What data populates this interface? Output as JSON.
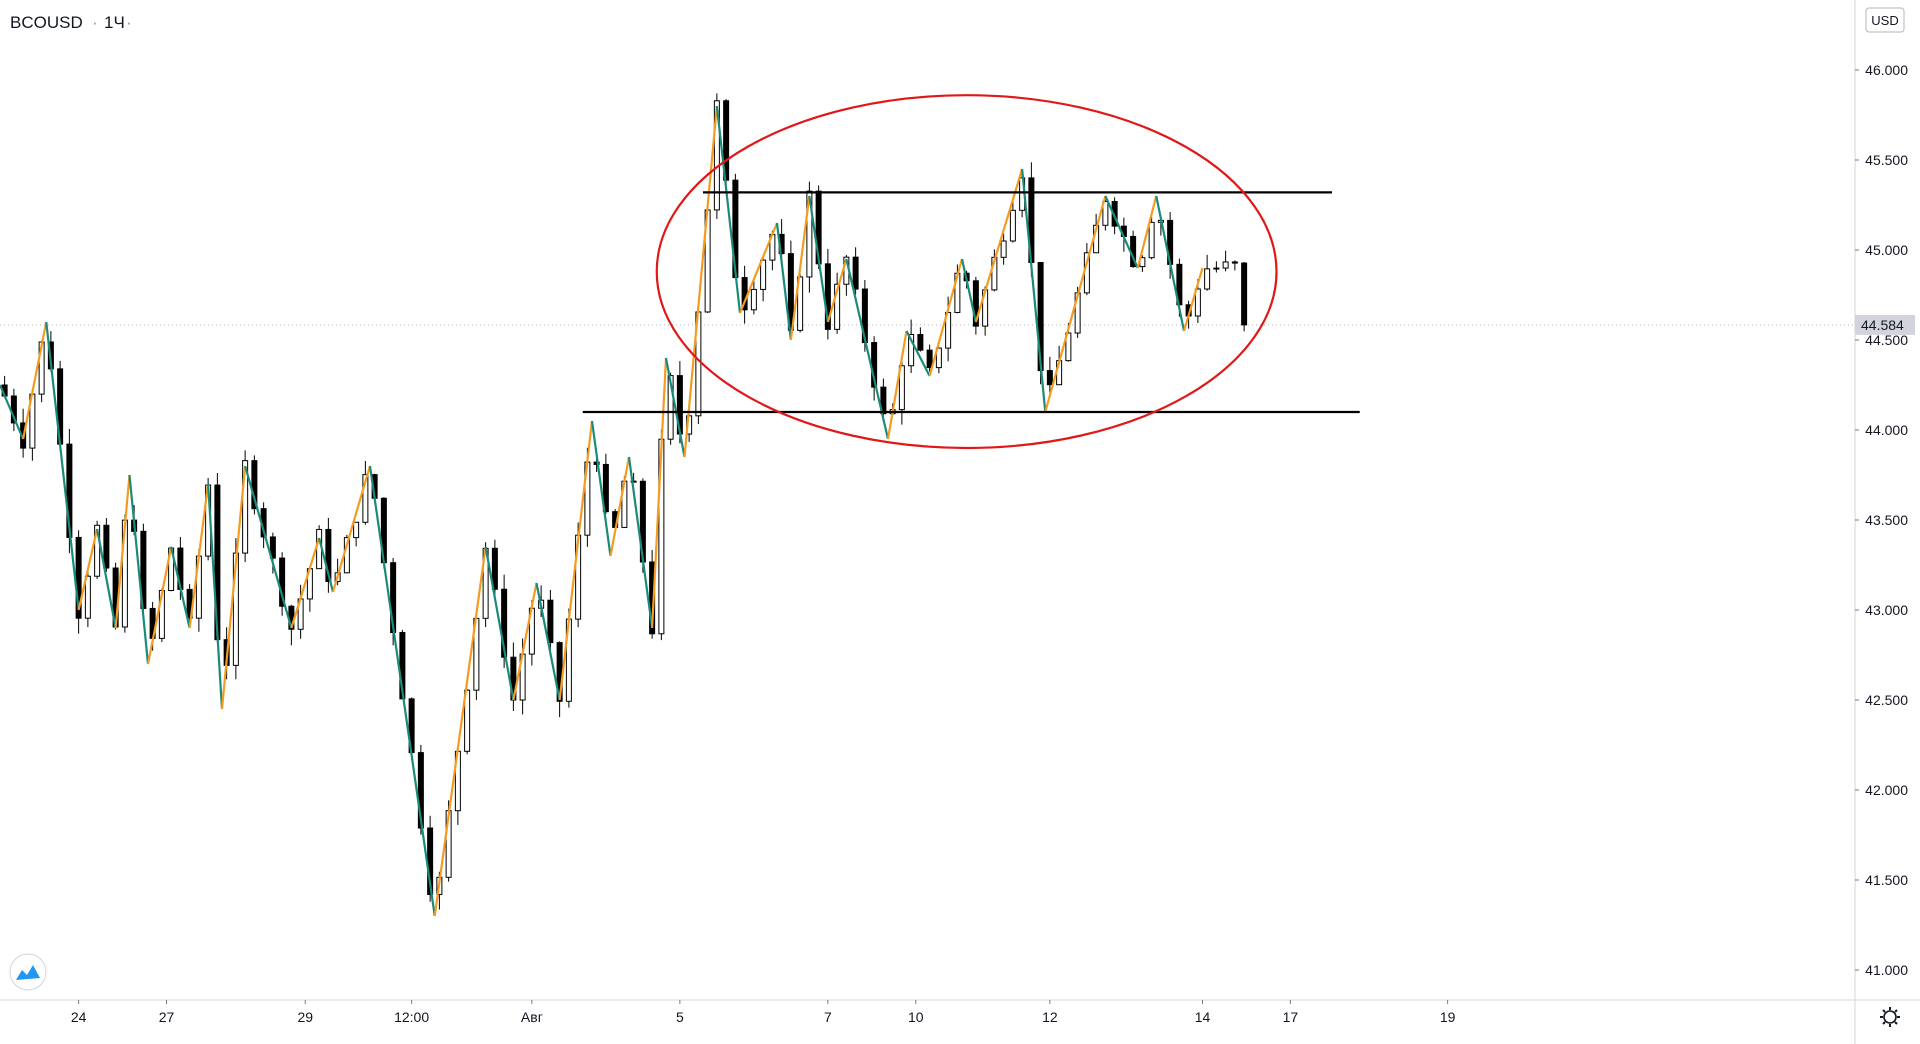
{
  "header": {
    "symbol": "BCOUSD",
    "sep": "·",
    "interval": "1Ч",
    "dot": "·"
  },
  "price_axis": {
    "currency": "USD",
    "current_price_label": "44.584"
  },
  "colors": {
    "candle": "#000000",
    "zigzag_up": "#f59b1f",
    "zigzag_down": "#1a8a7a",
    "level_lines": "#000000",
    "ellipse": "#e01818",
    "price_marker_bg": "#d1d4dc",
    "grid_axis": "#d1d4dc"
  },
  "chart_data": {
    "type": "candlestick",
    "symbol": "BCOUSD",
    "interval": "1Ч",
    "y_ticks": [
      41.0,
      41.5,
      42.0,
      42.5,
      43.0,
      43.5,
      44.0,
      44.5,
      45.0,
      45.5,
      46.0
    ],
    "y_tick_labels": [
      "41.000",
      "41.500",
      "42.000",
      "42.500",
      "43.000",
      "43.500",
      "44.000",
      "44.500",
      "45.000",
      "45.500",
      "46.000"
    ],
    "ylim": [
      40.85,
      46.35
    ],
    "x_tick_labels": [
      "24",
      "27",
      "29",
      "12:00",
      "Авг",
      "5",
      "7",
      "10",
      "12",
      "14",
      "17",
      "19"
    ],
    "current_price": 44.584,
    "zigzag": [
      [
        0,
        44.25
      ],
      [
        2.5,
        43.95
      ],
      [
        5.0,
        44.6
      ],
      [
        8.5,
        43.0
      ],
      [
        10.5,
        43.45
      ],
      [
        12.5,
        42.9
      ],
      [
        14.0,
        43.75
      ],
      [
        16.0,
        42.7
      ],
      [
        18.5,
        43.35
      ],
      [
        20.5,
        42.9
      ],
      [
        22.5,
        43.7
      ],
      [
        24.0,
        42.45
      ],
      [
        26.5,
        43.8
      ],
      [
        31.5,
        42.9
      ],
      [
        34.5,
        43.4
      ],
      [
        36.0,
        43.1
      ],
      [
        40.0,
        43.8
      ],
      [
        47.0,
        41.3
      ],
      [
        52.5,
        43.35
      ],
      [
        55.5,
        42.5
      ],
      [
        58.0,
        43.15
      ],
      [
        60.5,
        42.5
      ],
      [
        64.0,
        44.05
      ],
      [
        66.0,
        43.3
      ],
      [
        68.0,
        43.85
      ],
      [
        70.5,
        42.9
      ],
      [
        72.0,
        44.4
      ],
      [
        74.0,
        43.85
      ],
      [
        77.5,
        45.8
      ],
      [
        80.0,
        44.65
      ],
      [
        84.0,
        45.15
      ],
      [
        85.5,
        44.5
      ],
      [
        87.5,
        45.3
      ],
      [
        89.5,
        44.6
      ],
      [
        91.5,
        44.95
      ],
      [
        96.0,
        43.95
      ],
      [
        98.0,
        44.55
      ],
      [
        100.5,
        44.3
      ],
      [
        104.0,
        44.95
      ],
      [
        105.5,
        44.6
      ],
      [
        110.5,
        45.45
      ],
      [
        113.0,
        44.1
      ],
      [
        119.5,
        45.3
      ],
      [
        123.0,
        44.9
      ],
      [
        125.0,
        45.3
      ],
      [
        128.0,
        44.55
      ],
      [
        130.0,
        44.9
      ]
    ],
    "levels": [
      {
        "price": 45.32,
        "x_from": 76.0,
        "x_to": 144.0
      },
      {
        "price": 44.1,
        "x_from": 63.0,
        "x_to": 147.0
      }
    ],
    "ellipse": {
      "center_x": 104.5,
      "center_y": 44.88,
      "half_width_x": 33.5,
      "half_height_y": 0.98
    }
  }
}
